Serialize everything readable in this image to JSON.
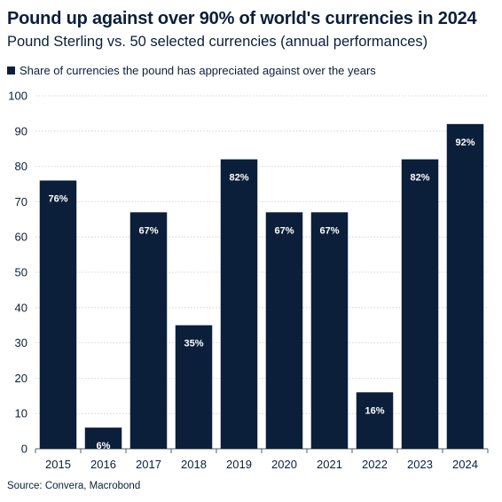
{
  "title": "Pound up against over 90% of world's currencies in 2024",
  "subtitle": "Pound Sterling vs. 50 selected currencies (annual performances)",
  "source": "Source: Convera, Macrobond",
  "chart_data": {
    "type": "bar",
    "title": "Pound up against over 90% of world's currencies in 2024",
    "subtitle": "Pound Sterling vs. 50 selected currencies (annual performances)",
    "categories": [
      "2015",
      "2016",
      "2017",
      "2018",
      "2019",
      "2020",
      "2021",
      "2022",
      "2023",
      "2024"
    ],
    "series": [
      {
        "name": "Share of currencies the pound has appreciated against over the years",
        "values": [
          76,
          6,
          67,
          35,
          82,
          67,
          67,
          16,
          82,
          92
        ],
        "labels": [
          "76%",
          "6%",
          "67%",
          "35%",
          "82%",
          "67%",
          "67%",
          "16%",
          "82%",
          "92%"
        ],
        "color": "#0b1f3a"
      }
    ],
    "ylim": [
      0,
      100
    ],
    "yticks": [
      "0",
      "10",
      "20",
      "30",
      "40",
      "50",
      "60",
      "70",
      "80",
      "90",
      "100"
    ],
    "xlabel": "",
    "ylabel": "",
    "grid": true,
    "legend_position": "top-left",
    "source": "Source: Convera, Macrobond"
  }
}
